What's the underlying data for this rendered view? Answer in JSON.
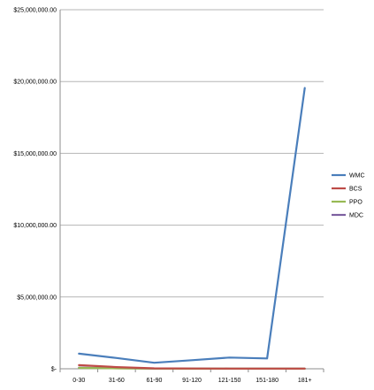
{
  "chart_data": {
    "type": "line",
    "categories": [
      "0-30",
      "31-60",
      "61-90",
      "91-120",
      "121-150",
      "151-180",
      "181+"
    ],
    "y_tick_labels": [
      "$-",
      "$5,000,000.00",
      "$10,000,000.00",
      "$15,000,000.00",
      "$20,000,000.00",
      "$25,000,000.00"
    ],
    "ylim": [
      0,
      25000000
    ],
    "grid": true,
    "legend_position": "right",
    "series": [
      {
        "name": "WMC",
        "color": "#4a7ebb",
        "values": [
          1050000,
          750000,
          420000,
          600000,
          780000,
          720000,
          19550000
        ]
      },
      {
        "name": "BCS",
        "color": "#be4b48",
        "values": [
          250000,
          120000,
          30000,
          20000,
          10000,
          10000,
          10000
        ]
      },
      {
        "name": "PPO",
        "color": "#98b954",
        "values": [
          60000,
          30000,
          10000,
          5000,
          5000,
          5000,
          5000
        ]
      },
      {
        "name": "MDC",
        "color": "#7d60a0",
        "values": [
          80000,
          40000,
          10000,
          5000,
          5000,
          5000,
          5000
        ]
      }
    ]
  }
}
